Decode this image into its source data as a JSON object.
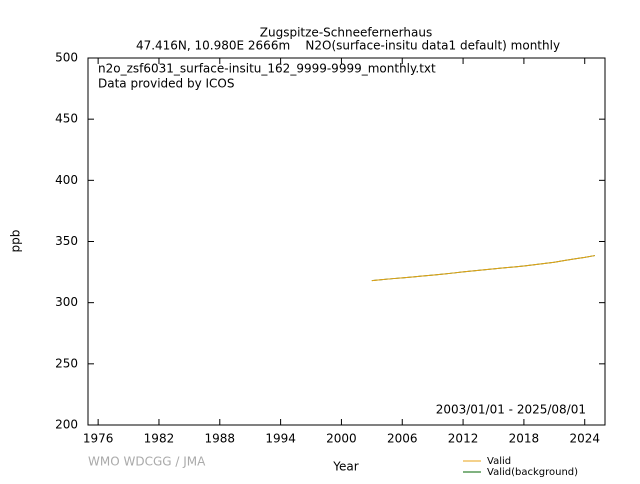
{
  "chart_data": {
    "type": "line",
    "title": "Zugspitze-Schneefernerhaus",
    "subtitle": "47.416N, 10.980E 2666m    N2O(surface-insitu data1 default) monthly",
    "annotations": [
      "n2o_zsf6031_surface-insitu_162_9999-9999_monthly.txt",
      "Data provided by ICOS",
      "2003/01/01 - 2025/08/01",
      "WMO WDCGG / JMA"
    ],
    "x_label": "Year",
    "y_label": "ppb",
    "x": [
      2003,
      2004,
      2005,
      2006,
      2007,
      2008,
      2009,
      2010,
      2011,
      2012,
      2013,
      2014,
      2015,
      2016,
      2017,
      2018,
      2019,
      2020,
      2021,
      2022,
      2023,
      2024,
      2025
    ],
    "series": [
      {
        "name": "Valid(background)",
        "color": "#006400",
        "values": [
          318.0,
          318.8,
          319.6,
          320.3,
          321.0,
          321.8,
          322.5,
          323.3,
          324.2,
          325.2,
          326.0,
          326.8,
          327.6,
          328.4,
          329.2,
          330.0,
          331.0,
          332.0,
          333.0,
          334.5,
          335.8,
          337.0,
          338.5
        ]
      },
      {
        "name": "Valid",
        "color": "#e8a317",
        "values": [
          318.0,
          318.8,
          319.6,
          320.3,
          321.0,
          321.8,
          322.5,
          323.3,
          324.2,
          325.2,
          326.0,
          326.8,
          327.6,
          328.4,
          329.2,
          330.0,
          331.0,
          332.0,
          333.0,
          334.5,
          335.8,
          337.0,
          338.5
        ]
      }
    ],
    "xlim": [
      1975,
      2026
    ],
    "xticks": [
      1976,
      1982,
      1988,
      1994,
      2000,
      2006,
      2012,
      2018,
      2024
    ],
    "ylim": [
      200,
      500
    ],
    "yticks": [
      200,
      250,
      300,
      350,
      400,
      450,
      500
    ],
    "grid": false
  }
}
